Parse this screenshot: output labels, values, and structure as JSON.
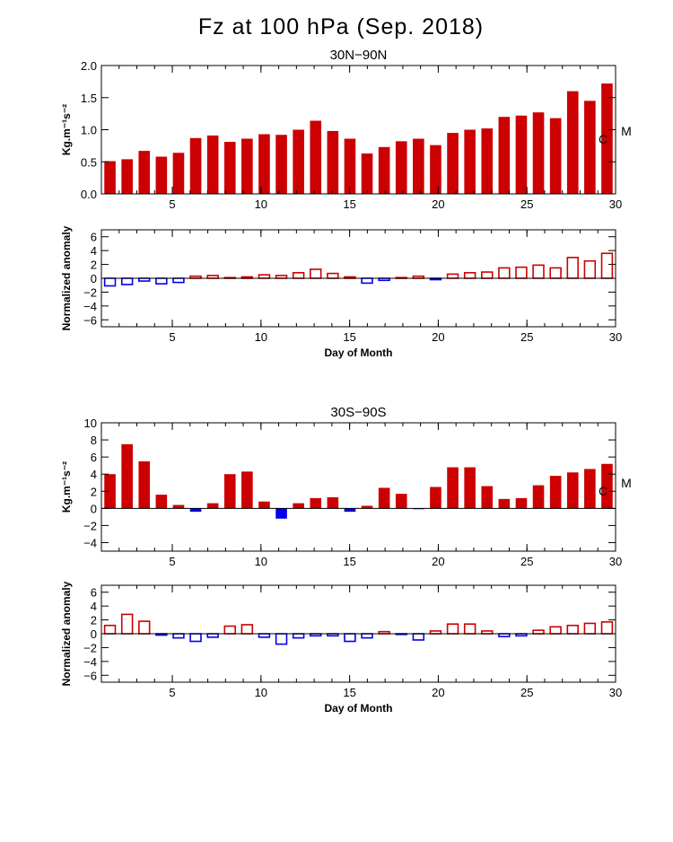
{
  "title": "Fz at 100 hPa (Sep. 2018)",
  "colors": {
    "positive": "#cc0000",
    "negative": "#0000ee",
    "axis": "#000000"
  },
  "chart_data": [
    {
      "type": "bar",
      "style": "filled",
      "title": "30N−90N",
      "ylabel": "Kg.m⁻¹s⁻²",
      "xlabel": "",
      "ylim": [
        0,
        2.0
      ],
      "yticks": [
        "0.0",
        "0.5",
        "1.0",
        "1.5",
        "2.0"
      ],
      "ytick_values": [
        0,
        0.5,
        1.0,
        1.5,
        2.0
      ],
      "xticks": [
        "5",
        "10",
        "15",
        "20",
        "25",
        "30"
      ],
      "xtick_values": [
        5,
        10,
        15,
        20,
        25,
        30
      ],
      "xlim": [
        1,
        30
      ],
      "markers": [
        "C",
        "M"
      ],
      "x": [
        1,
        2,
        3,
        4,
        5,
        6,
        7,
        8,
        9,
        10,
        11,
        12,
        13,
        14,
        15,
        16,
        17,
        18,
        19,
        20,
        21,
        22,
        23,
        24,
        25,
        26,
        27,
        28,
        29,
        30
      ],
      "values": [
        0.51,
        0.54,
        0.67,
        0.58,
        0.64,
        0.87,
        0.91,
        0.81,
        0.86,
        0.93,
        0.92,
        1.0,
        1.14,
        0.98,
        0.86,
        0.63,
        0.73,
        0.82,
        0.86,
        0.76,
        0.95,
        1.0,
        1.02,
        1.2,
        1.22,
        1.27,
        1.18,
        1.6,
        1.45,
        1.72
      ]
    },
    {
      "type": "bar",
      "style": "outline",
      "title": "",
      "ylabel": "Normalized anomaly",
      "xlabel": "Day of Month",
      "ylim": [
        -7,
        7
      ],
      "yticks": [
        "6",
        "4",
        "2",
        "0",
        "−2",
        "−4",
        "−6"
      ],
      "ytick_values": [
        6,
        4,
        2,
        0,
        -2,
        -4,
        -6
      ],
      "xticks": [
        "5",
        "10",
        "15",
        "20",
        "25",
        "30"
      ],
      "xtick_values": [
        5,
        10,
        15,
        20,
        25,
        30
      ],
      "xlim": [
        1,
        30
      ],
      "x": [
        1,
        2,
        3,
        4,
        5,
        6,
        7,
        8,
        9,
        10,
        11,
        12,
        13,
        14,
        15,
        16,
        17,
        18,
        19,
        20,
        21,
        22,
        23,
        24,
        25,
        26,
        27,
        28,
        29,
        30
      ],
      "values": [
        -1.1,
        -0.9,
        -0.4,
        -0.8,
        -0.6,
        0.3,
        0.4,
        0.1,
        0.2,
        0.5,
        0.4,
        0.8,
        1.3,
        0.7,
        0.2,
        -0.7,
        -0.3,
        0.1,
        0.3,
        -0.2,
        0.6,
        0.8,
        0.9,
        1.5,
        1.6,
        1.9,
        1.5,
        3.0,
        2.5,
        3.6
      ]
    },
    {
      "type": "bar",
      "style": "filled",
      "title": "30S−90S",
      "ylabel": "Kg.m⁻¹s⁻²",
      "xlabel": "",
      "ylim": [
        -5,
        10
      ],
      "yticks": [
        "10",
        "8",
        "6",
        "4",
        "2",
        "0",
        "−2",
        "−4"
      ],
      "ytick_values": [
        10,
        8,
        6,
        4,
        2,
        0,
        -2,
        -4
      ],
      "xticks": [
        "5",
        "10",
        "15",
        "20",
        "25",
        "30"
      ],
      "xtick_values": [
        5,
        10,
        15,
        20,
        25,
        30
      ],
      "xlim": [
        1,
        30
      ],
      "markers": [
        "C",
        "M"
      ],
      "x": [
        1,
        2,
        3,
        4,
        5,
        6,
        7,
        8,
        9,
        10,
        11,
        12,
        13,
        14,
        15,
        16,
        17,
        18,
        19,
        20,
        21,
        22,
        23,
        24,
        25,
        26,
        27,
        28,
        29,
        30
      ],
      "values": [
        4.0,
        7.5,
        5.5,
        1.6,
        0.4,
        -0.4,
        0.6,
        4.0,
        4.3,
        0.8,
        -1.2,
        0.6,
        1.2,
        1.3,
        -0.4,
        0.3,
        2.4,
        1.7,
        -0.1,
        2.5,
        4.8,
        4.8,
        2.6,
        1.1,
        1.2,
        2.7,
        3.8,
        4.2,
        4.6,
        5.2
      ]
    },
    {
      "type": "bar",
      "style": "outline",
      "title": "",
      "ylabel": "Normalized anomaly",
      "xlabel": "Day of Month",
      "ylim": [
        -7,
        7
      ],
      "yticks": [
        "6",
        "4",
        "2",
        "0",
        "−2",
        "−4",
        "−6"
      ],
      "ytick_values": [
        6,
        4,
        2,
        0,
        -2,
        -4,
        -6
      ],
      "xticks": [
        "5",
        "10",
        "15",
        "20",
        "25",
        "30"
      ],
      "xtick_values": [
        5,
        10,
        15,
        20,
        25,
        30
      ],
      "xlim": [
        1,
        30
      ],
      "x": [
        1,
        2,
        3,
        4,
        5,
        6,
        7,
        8,
        9,
        10,
        11,
        12,
        13,
        14,
        15,
        16,
        17,
        18,
        19,
        20,
        21,
        22,
        23,
        24,
        25,
        26,
        27,
        28,
        29,
        30
      ],
      "values": [
        1.2,
        2.8,
        1.8,
        -0.2,
        -0.6,
        -1.1,
        -0.5,
        1.1,
        1.3,
        -0.5,
        -1.5,
        -0.6,
        -0.3,
        -0.3,
        -1.1,
        -0.6,
        0.3,
        -0.1,
        -0.9,
        0.4,
        1.4,
        1.4,
        0.4,
        -0.4,
        -0.3,
        0.5,
        1.0,
        1.2,
        1.5,
        1.7
      ]
    }
  ]
}
